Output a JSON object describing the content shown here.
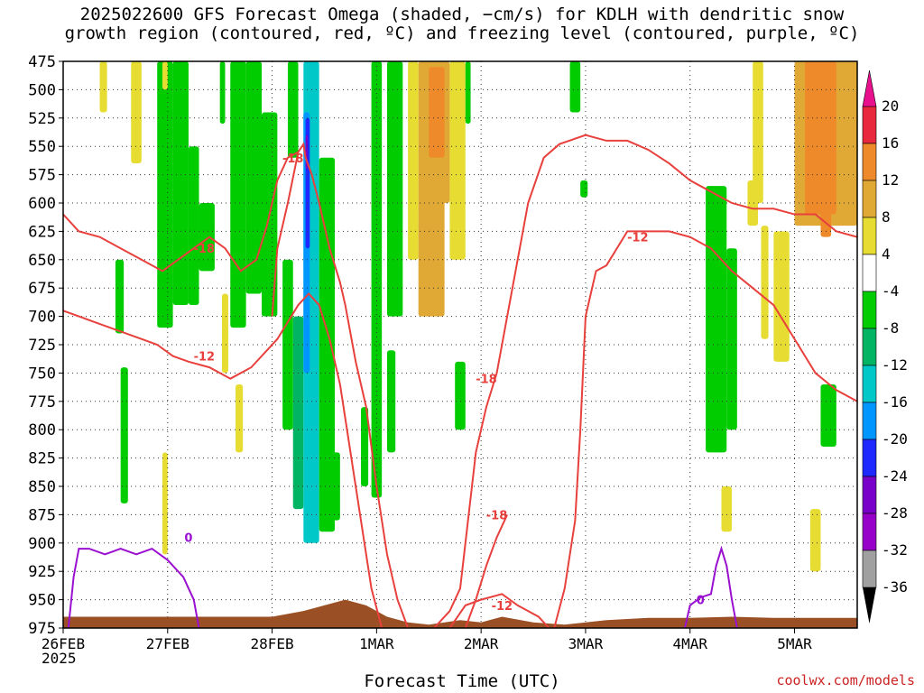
{
  "title": {
    "line1": "2025022600 GFS Forecast Omega (shaded, −cm/s) for KDLH with dendritic snow",
    "line2": "growth region (contoured, red, ºC) and freezing level (contoured, purple, ºC)"
  },
  "x_axis_title": "Forecast Time (UTC)",
  "year_label": "2025",
  "credit": "coolwx.com/models",
  "chart_data": {
    "type": "heatmap",
    "x_dates": [
      "26FEB",
      "27FEB",
      "28FEB",
      "1MAR",
      "2MAR",
      "3MAR",
      "4MAR",
      "5MAR"
    ],
    "x_range_days": [
      0,
      7.6
    ],
    "y_levels_hPa": [
      475,
      500,
      525,
      550,
      575,
      600,
      625,
      650,
      675,
      700,
      725,
      750,
      775,
      800,
      825,
      850,
      875,
      900,
      925,
      950,
      975
    ],
    "y_range_hPa": [
      475,
      975
    ],
    "grid": true,
    "colorbar": {
      "labels": [
        "20",
        "16",
        "12",
        "8",
        "4",
        "-4",
        "-8",
        "-12",
        "-16",
        "-20",
        "-24",
        "-28",
        "-32",
        "-36"
      ],
      "bins": [
        {
          "min": 16,
          "max": 20,
          "color": "#e8283c"
        },
        {
          "min": 12,
          "max": 16,
          "color": "#ee8a2a"
        },
        {
          "min": 8,
          "max": 12,
          "color": "#e0a834"
        },
        {
          "min": 4,
          "max": 8,
          "color": "#e6dc32"
        },
        {
          "min": -4,
          "max": 4,
          "color": "#ffffff"
        },
        {
          "min": -8,
          "max": -4,
          "color": "#00cc00"
        },
        {
          "min": -12,
          "max": -8,
          "color": "#00b464"
        },
        {
          "min": -16,
          "max": -12,
          "color": "#00c8c8"
        },
        {
          "min": -20,
          "max": -16,
          "color": "#0096ff"
        },
        {
          "min": -24,
          "max": -20,
          "color": "#1e28ff"
        },
        {
          "min": -28,
          "max": -24,
          "color": "#7800c8"
        },
        {
          "min": -32,
          "max": -28,
          "color": "#9600c8"
        },
        {
          "min": -36,
          "max": -32,
          "color": "#a0a0a0"
        }
      ],
      "top_arrow_color": "#e8108c",
      "bottom_arrow_color": "#000000"
    },
    "shaded_regions": [
      {
        "t0": 0.35,
        "t1": 0.42,
        "p0": 475,
        "p1": 520,
        "value": 6
      },
      {
        "t0": 0.65,
        "t1": 0.75,
        "p0": 475,
        "p1": 565,
        "value": 6
      },
      {
        "t0": 1.0,
        "t1": 1.05,
        "p0": 640,
        "p1": 700,
        "value": 6
      },
      {
        "t0": 0.5,
        "t1": 0.58,
        "p0": 650,
        "p1": 715,
        "value": -6
      },
      {
        "t0": 0.55,
        "t1": 0.62,
        "p0": 745,
        "p1": 865,
        "value": -6
      },
      {
        "t0": 0.9,
        "t1": 1.05,
        "p0": 475,
        "p1": 710,
        "value": -6
      },
      {
        "t0": 1.05,
        "t1": 1.2,
        "p0": 475,
        "p1": 690,
        "value": -6
      },
      {
        "t0": 1.2,
        "t1": 1.3,
        "p0": 550,
        "p1": 690,
        "value": -6
      },
      {
        "t0": 1.3,
        "t1": 1.45,
        "p0": 600,
        "p1": 660,
        "value": -6
      },
      {
        "t0": 0.95,
        "t1": 1.0,
        "p0": 820,
        "p1": 910,
        "value": 6
      },
      {
        "t0": 1.5,
        "t1": 1.55,
        "p0": 475,
        "p1": 530,
        "value": -6
      },
      {
        "t0": 1.52,
        "t1": 1.58,
        "p0": 680,
        "p1": 750,
        "value": 6
      },
      {
        "t0": 1.65,
        "t1": 1.72,
        "p0": 760,
        "p1": 820,
        "value": 6
      },
      {
        "t0": 1.6,
        "t1": 1.75,
        "p0": 475,
        "p1": 710,
        "value": -6
      },
      {
        "t0": 1.75,
        "t1": 1.9,
        "p0": 475,
        "p1": 680,
        "value": -6
      },
      {
        "t0": 1.9,
        "t1": 2.05,
        "p0": 520,
        "p1": 700,
        "value": -6
      },
      {
        "t0": 2.1,
        "t1": 2.2,
        "p0": 650,
        "p1": 800,
        "value": -6
      },
      {
        "t0": 2.2,
        "t1": 2.3,
        "p0": 700,
        "p1": 870,
        "value": -10
      },
      {
        "t0": 2.3,
        "t1": 2.45,
        "p0": 475,
        "p1": 900,
        "value": -14
      },
      {
        "t0": 2.3,
        "t1": 2.36,
        "p0": 520,
        "p1": 750,
        "value": -18
      },
      {
        "t0": 2.32,
        "t1": 2.36,
        "p0": 525,
        "p1": 640,
        "value": -22
      },
      {
        "t0": 2.32,
        "t1": 2.34,
        "p0": 540,
        "p1": 570,
        "value": -26
      },
      {
        "t0": 2.15,
        "t1": 2.25,
        "p0": 475,
        "p1": 560,
        "value": -6
      },
      {
        "t0": 2.45,
        "t1": 2.6,
        "p0": 560,
        "p1": 890,
        "value": -8
      },
      {
        "t0": 2.55,
        "t1": 2.65,
        "p0": 820,
        "p1": 880,
        "value": -6
      },
      {
        "t0": 2.85,
        "t1": 2.92,
        "p0": 780,
        "p1": 850,
        "value": -6
      },
      {
        "t0": 2.95,
        "t1": 3.05,
        "p0": 475,
        "p1": 860,
        "value": -6
      },
      {
        "t0": 3.1,
        "t1": 3.25,
        "p0": 475,
        "p1": 700,
        "value": -6
      },
      {
        "t0": 3.1,
        "t1": 3.18,
        "p0": 730,
        "p1": 820,
        "value": -6
      },
      {
        "t0": 3.3,
        "t1": 3.4,
        "p0": 475,
        "p1": 650,
        "value": 6
      },
      {
        "t0": 3.4,
        "t1": 3.65,
        "p0": 475,
        "p1": 700,
        "value": 8
      },
      {
        "t0": 3.5,
        "t1": 3.7,
        "p0": 475,
        "p1": 600,
        "value": 10
      },
      {
        "t0": 3.5,
        "t1": 3.65,
        "p0": 480,
        "p1": 560,
        "value": 14
      },
      {
        "t0": 3.7,
        "t1": 3.85,
        "p0": 475,
        "p1": 650,
        "value": 6
      },
      {
        "t0": 3.85,
        "t1": 3.9,
        "p0": 475,
        "p1": 530,
        "value": -6
      },
      {
        "t0": 3.75,
        "t1": 3.85,
        "p0": 740,
        "p1": 800,
        "value": -6
      },
      {
        "t0": 4.85,
        "t1": 4.95,
        "p0": 475,
        "p1": 520,
        "value": -6
      },
      {
        "t0": 4.95,
        "t1": 5.02,
        "p0": 580,
        "p1": 595,
        "value": -6
      },
      {
        "t0": 6.15,
        "t1": 6.35,
        "p0": 585,
        "p1": 820,
        "value": -6
      },
      {
        "t0": 6.35,
        "t1": 6.45,
        "p0": 640,
        "p1": 800,
        "value": -6
      },
      {
        "t0": 6.6,
        "t1": 6.7,
        "p0": 475,
        "p1": 600,
        "value": 6
      },
      {
        "t0": 6.55,
        "t1": 6.65,
        "p0": 580,
        "p1": 620,
        "value": 6
      },
      {
        "t0": 6.68,
        "t1": 6.75,
        "p0": 620,
        "p1": 720,
        "value": 6
      },
      {
        "t0": 6.8,
        "t1": 6.95,
        "p0": 625,
        "p1": 740,
        "value": 6
      },
      {
        "t0": 7.0,
        "t1": 7.6,
        "p0": 475,
        "p1": 620,
        "value": 8
      },
      {
        "t0": 7.1,
        "t1": 7.4,
        "p0": 475,
        "p1": 610,
        "value": 12
      },
      {
        "t0": 7.25,
        "t1": 7.35,
        "p0": 600,
        "p1": 630,
        "value": 12
      },
      {
        "t0": 7.25,
        "t1": 7.4,
        "p0": 760,
        "p1": 815,
        "value": -6
      },
      {
        "t0": 6.3,
        "t1": 6.4,
        "p0": 850,
        "p1": 890,
        "value": 6
      },
      {
        "t0": 7.15,
        "t1": 7.25,
        "p0": 870,
        "p1": 925,
        "value": 6
      },
      {
        "t0": 0.95,
        "t1": 1.0,
        "p0": 475,
        "p1": 500,
        "value": 6
      }
    ],
    "dsg_contours_red": [
      {
        "label": "-18",
        "label_at": [
          2.2,
          560
        ],
        "points": [
          [
            2.0,
            700
          ],
          [
            2.05,
            640
          ],
          [
            2.15,
            600
          ],
          [
            2.25,
            555
          ],
          [
            2.3,
            548
          ],
          [
            2.32,
            560
          ],
          [
            2.38,
            575
          ],
          [
            2.45,
            600
          ],
          [
            2.55,
            640
          ],
          [
            2.65,
            670
          ],
          [
            2.7,
            690
          ],
          [
            2.8,
            740
          ],
          [
            2.9,
            780
          ],
          [
            3.0,
            850
          ],
          [
            3.1,
            910
          ],
          [
            3.2,
            950
          ],
          [
            3.3,
            975
          ]
        ]
      },
      {
        "label": "-18",
        "label_at": [
          4.05,
          755
        ],
        "points": [
          [
            3.55,
            975
          ],
          [
            3.7,
            960
          ],
          [
            3.8,
            940
          ],
          [
            3.85,
            900
          ],
          [
            3.9,
            860
          ],
          [
            3.95,
            820
          ],
          [
            4.05,
            780
          ],
          [
            4.15,
            750
          ],
          [
            4.25,
            700
          ],
          [
            4.35,
            650
          ],
          [
            4.45,
            600
          ],
          [
            4.6,
            560
          ],
          [
            4.75,
            548
          ],
          [
            5.0,
            540
          ],
          [
            5.2,
            545
          ],
          [
            5.4,
            545
          ],
          [
            5.6,
            553
          ],
          [
            5.8,
            565
          ],
          [
            6.0,
            580
          ],
          [
            6.2,
            590
          ],
          [
            6.4,
            600
          ],
          [
            6.6,
            605
          ],
          [
            6.8,
            605
          ],
          [
            7.0,
            610
          ],
          [
            7.2,
            610
          ],
          [
            7.4,
            625
          ],
          [
            7.6,
            630
          ]
        ]
      },
      {
        "label": "-12",
        "label_at": [
          1.35,
          735
        ],
        "points": [
          [
            0.0,
            695
          ],
          [
            0.15,
            700
          ],
          [
            0.3,
            705
          ],
          [
            0.45,
            710
          ],
          [
            0.6,
            715
          ],
          [
            0.75,
            720
          ],
          [
            0.9,
            725
          ],
          [
            1.05,
            735
          ],
          [
            1.2,
            740
          ],
          [
            1.4,
            745
          ],
          [
            1.6,
            755
          ],
          [
            1.8,
            745
          ],
          [
            1.95,
            730
          ],
          [
            2.05,
            720
          ],
          [
            2.15,
            705
          ],
          [
            2.25,
            690
          ],
          [
            2.35,
            680
          ],
          [
            2.45,
            690
          ],
          [
            2.55,
            720
          ],
          [
            2.65,
            760
          ],
          [
            2.75,
            820
          ],
          [
            2.85,
            880
          ],
          [
            2.95,
            940
          ],
          [
            3.05,
            975
          ]
        ]
      },
      {
        "label": "-12",
        "label_at": [
          4.2,
          955
        ],
        "points": [
          [
            3.7,
            975
          ],
          [
            3.85,
            955
          ],
          [
            4.0,
            950
          ],
          [
            4.2,
            945
          ],
          [
            4.35,
            955
          ],
          [
            4.45,
            960
          ],
          [
            4.55,
            965
          ],
          [
            4.65,
            975
          ]
        ]
      },
      {
        "label": "-12",
        "label_at": [
          5.5,
          630
        ],
        "points": [
          [
            4.7,
            975
          ],
          [
            4.8,
            940
          ],
          [
            4.9,
            880
          ],
          [
            4.95,
            800
          ],
          [
            5.0,
            700
          ],
          [
            5.05,
            680
          ],
          [
            5.1,
            660
          ],
          [
            5.2,
            655
          ],
          [
            5.3,
            640
          ],
          [
            5.4,
            625
          ],
          [
            5.6,
            625
          ],
          [
            5.8,
            625
          ],
          [
            6.0,
            630
          ],
          [
            6.2,
            640
          ],
          [
            6.4,
            660
          ],
          [
            6.6,
            675
          ],
          [
            6.8,
            690
          ],
          [
            7.0,
            720
          ],
          [
            7.2,
            750
          ],
          [
            7.4,
            765
          ],
          [
            7.6,
            775
          ]
        ]
      },
      {
        "label": "-18",
        "label_at": [
          4.15,
          875
        ],
        "points": [
          [
            3.85,
            975
          ],
          [
            3.95,
            950
          ],
          [
            4.05,
            920
          ],
          [
            4.15,
            895
          ],
          [
            4.25,
            875
          ]
        ]
      },
      {
        "label": "-18",
        "label_at": [
          1.35,
          640
        ],
        "points": [
          [
            0.0,
            610
          ],
          [
            0.15,
            625
          ],
          [
            0.35,
            630
          ],
          [
            0.55,
            640
          ],
          [
            0.75,
            650
          ],
          [
            0.95,
            660
          ],
          [
            1.1,
            650
          ],
          [
            1.25,
            640
          ],
          [
            1.4,
            630
          ],
          [
            1.55,
            640
          ],
          [
            1.7,
            660
          ],
          [
            1.85,
            650
          ],
          [
            1.95,
            620
          ],
          [
            2.05,
            580
          ],
          [
            2.15,
            560
          ],
          [
            2.25,
            555
          ]
        ]
      }
    ],
    "freezing_contours_purple": [
      {
        "label": "0",
        "label_at": [
          1.2,
          895
        ],
        "points": [
          [
            0.05,
            975
          ],
          [
            0.1,
            930
          ],
          [
            0.15,
            905
          ],
          [
            0.25,
            905
          ],
          [
            0.4,
            910
          ],
          [
            0.55,
            905
          ],
          [
            0.7,
            910
          ],
          [
            0.85,
            905
          ],
          [
            1.0,
            915
          ],
          [
            1.15,
            930
          ],
          [
            1.25,
            950
          ],
          [
            1.3,
            975
          ]
        ]
      },
      {
        "label": "0",
        "label_at": [
          6.1,
          950
        ],
        "points": [
          [
            5.95,
            975
          ],
          [
            6.0,
            955
          ],
          [
            6.1,
            948
          ],
          [
            6.2,
            945
          ],
          [
            6.25,
            920
          ],
          [
            6.3,
            905
          ],
          [
            6.35,
            920
          ],
          [
            6.4,
            950
          ],
          [
            6.45,
            975
          ]
        ]
      }
    ],
    "terrain_color": "#9a5024",
    "terrain_top_hPa": [
      [
        0.0,
        965
      ],
      [
        0.5,
        965
      ],
      [
        1.0,
        965
      ],
      [
        1.5,
        965
      ],
      [
        2.0,
        965
      ],
      [
        2.3,
        960
      ],
      [
        2.5,
        955
      ],
      [
        2.7,
        950
      ],
      [
        2.9,
        955
      ],
      [
        3.1,
        965
      ],
      [
        3.3,
        970
      ],
      [
        3.5,
        972
      ],
      [
        3.8,
        968
      ],
      [
        4.0,
        970
      ],
      [
        4.2,
        965
      ],
      [
        4.5,
        970
      ],
      [
        4.8,
        972
      ],
      [
        5.2,
        968
      ],
      [
        5.6,
        966
      ],
      [
        6.0,
        966
      ],
      [
        6.4,
        965
      ],
      [
        6.8,
        966
      ],
      [
        7.2,
        966
      ],
      [
        7.6,
        966
      ]
    ]
  }
}
